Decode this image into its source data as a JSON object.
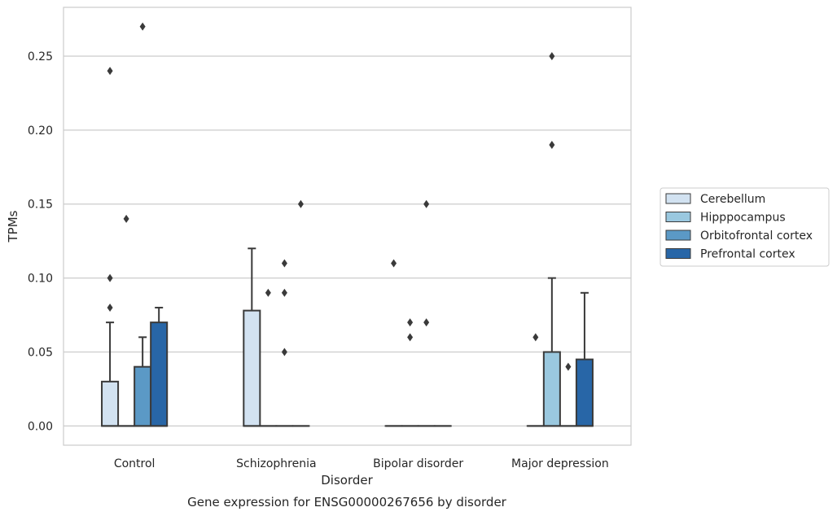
{
  "chart_data": {
    "type": "box",
    "xlabel": "Disorder",
    "ylabel": "TPMs",
    "caption": "Gene expression for ENSG00000267656 by disorder",
    "ylim": [
      -0.013,
      0.283
    ],
    "yticks": [
      "0.00",
      "0.05",
      "0.10",
      "0.15",
      "0.20",
      "0.25"
    ],
    "ytick_values": [
      0,
      0.05,
      0.1,
      0.15,
      0.2,
      0.25
    ],
    "grid": "horizontal",
    "legend_position": "right",
    "categories": [
      "Control",
      "Schizophrenia",
      "Bipolar disorder",
      "Major depression"
    ],
    "series": [
      {
        "name": "Cerebellum",
        "color": "#d2e2f1",
        "boxes": [
          {
            "q1": 0,
            "median": 0,
            "q3": 0.03,
            "whisker_low": 0,
            "whisker_high": 0.07,
            "outliers": [
              0.24,
              0.1,
              0.08
            ]
          },
          {
            "q1": 0,
            "median": 0,
            "q3": 0.078,
            "whisker_low": 0,
            "whisker_high": 0.12,
            "outliers": []
          },
          {
            "q1": 0,
            "median": 0,
            "q3": 0,
            "whisker_low": 0,
            "whisker_high": 0,
            "outliers": [
              0.11
            ]
          },
          {
            "q1": 0,
            "median": 0,
            "q3": 0,
            "whisker_low": 0,
            "whisker_high": 0,
            "outliers": [
              0.06
            ]
          }
        ]
      },
      {
        "name": "Hipppocampus",
        "color": "#9ac8df",
        "boxes": [
          {
            "q1": 0,
            "median": 0,
            "q3": 0,
            "whisker_low": 0,
            "whisker_high": 0,
            "outliers": [
              0.14
            ]
          },
          {
            "q1": 0,
            "median": 0,
            "q3": 0,
            "whisker_low": 0,
            "whisker_high": 0,
            "outliers": [
              0.09
            ]
          },
          {
            "q1": 0,
            "median": 0,
            "q3": 0,
            "whisker_low": 0,
            "whisker_high": 0,
            "outliers": [
              0.07,
              0.06
            ]
          },
          {
            "q1": 0,
            "median": 0,
            "q3": 0.05,
            "whisker_low": 0,
            "whisker_high": 0.1,
            "outliers": [
              0.25,
              0.19
            ]
          }
        ]
      },
      {
        "name": "Orbitofrontal cortex",
        "color": "#5b99c6",
        "boxes": [
          {
            "q1": 0,
            "median": 0,
            "q3": 0.04,
            "whisker_low": 0,
            "whisker_high": 0.06,
            "outliers": [
              0.27
            ]
          },
          {
            "q1": 0,
            "median": 0,
            "q3": 0,
            "whisker_low": 0,
            "whisker_high": 0,
            "outliers": [
              0.11,
              0.09,
              0.05
            ]
          },
          {
            "q1": 0,
            "median": 0,
            "q3": 0,
            "whisker_low": 0,
            "whisker_high": 0,
            "outliers": [
              0.15,
              0.07
            ]
          },
          {
            "q1": 0,
            "median": 0,
            "q3": 0,
            "whisker_low": 0,
            "whisker_high": 0,
            "outliers": [
              0.04
            ]
          }
        ]
      },
      {
        "name": "Prefrontal cortex",
        "color": "#2866a7",
        "boxes": [
          {
            "q1": 0,
            "median": 0,
            "q3": 0.07,
            "whisker_low": 0,
            "whisker_high": 0.08,
            "outliers": []
          },
          {
            "q1": 0,
            "median": 0,
            "q3": 0,
            "whisker_low": 0,
            "whisker_high": 0,
            "outliers": [
              0.15
            ]
          },
          {
            "q1": 0,
            "median": 0,
            "q3": 0,
            "whisker_low": 0,
            "whisker_high": 0,
            "outliers": []
          },
          {
            "q1": 0,
            "median": 0,
            "q3": 0.045,
            "whisker_low": 0,
            "whisker_high": 0.09,
            "outliers": []
          }
        ]
      }
    ]
  }
}
